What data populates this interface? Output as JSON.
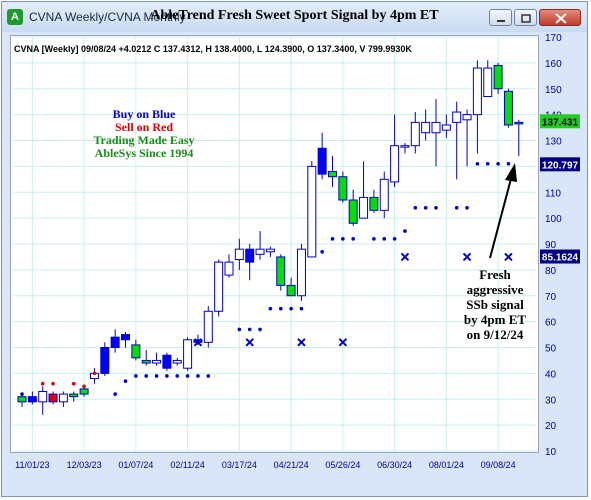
{
  "window": {
    "title": "CVNA Weekly/CVNA Monthly",
    "app_icon": "able-trend-icon",
    "chart_title": "AbleTrend Fresh Sweet Sport Signal by 4pm ET",
    "buttons": [
      "minimize",
      "restore",
      "close"
    ]
  },
  "quote_line": "CVNA [Weekly] 09/08/24 +4.0212 C 137.4312, H 138.4000, L 124.3900, O 137.3400, V 799.9930K",
  "legend": {
    "buy": "Buy on Blue",
    "sell": "Sell on Red",
    "tagline": "Trading Made Easy",
    "since": "AbleSys Since 1994",
    "colors": {
      "buy": "#0000e0",
      "sell": "#e00000",
      "tagline": "#1a8a1a",
      "since": "#1a8a1a"
    }
  },
  "annotation": {
    "lines": [
      "Fresh",
      "aggressive",
      "SSb signal",
      "by 4pm ET",
      "on 9/12/24"
    ]
  },
  "price_labels": [
    {
      "value": "137.431",
      "bg": "#22cc22",
      "fg": "#000000"
    },
    {
      "value": "120.797",
      "bg": "#000080",
      "fg": "#ffffff"
    },
    {
      "value": "85.1624",
      "bg": "#000080",
      "fg": "#ffffff"
    }
  ],
  "chart_data": {
    "type": "candlestick",
    "ylim": [
      10,
      170
    ],
    "yticks": [
      10,
      20,
      30,
      40,
      50,
      60,
      70,
      80,
      90,
      100,
      110,
      120,
      130,
      140,
      150,
      160,
      170
    ],
    "xticks": [
      "11/01/23",
      "12/03/23",
      "01/07/24",
      "02/11/24",
      "03/17/24",
      "04/21/24",
      "05/26/24",
      "06/30/24",
      "08/01/24",
      "09/08/24"
    ],
    "xtick_bars": [
      1,
      6,
      11,
      16,
      21,
      26,
      31,
      36,
      41,
      46
    ],
    "grid": true,
    "colors": {
      "up": "#00e000",
      "down": "#0000ff",
      "neutral": "#ffffff",
      "red": "#e00000",
      "wick": "#0000cc"
    },
    "bars": [
      {
        "o": 29,
        "h": 32,
        "l": 27,
        "c": 31,
        "color": "green"
      },
      {
        "o": 31,
        "h": 33,
        "l": 28,
        "c": 29,
        "color": "blue"
      },
      {
        "o": 29,
        "h": 35,
        "l": 24,
        "c": 33,
        "color": "white"
      },
      {
        "o": 32,
        "h": 33,
        "l": 28,
        "c": 29,
        "color": "red"
      },
      {
        "o": 29,
        "h": 33,
        "l": 27,
        "c": 32,
        "color": "white"
      },
      {
        "o": 31,
        "h": 33,
        "l": 29,
        "c": 32,
        "color": "green"
      },
      {
        "o": 32,
        "h": 35,
        "l": 31,
        "c": 34,
        "color": "green"
      },
      {
        "o": 38,
        "h": 42,
        "l": 36,
        "c": 40,
        "color": "white"
      },
      {
        "o": 40,
        "h": 52,
        "l": 39,
        "c": 50,
        "color": "blue"
      },
      {
        "o": 50,
        "h": 57,
        "l": 48,
        "c": 54,
        "color": "blue"
      },
      {
        "o": 53,
        "h": 56,
        "l": 50,
        "c": 55,
        "color": "blue"
      },
      {
        "o": 51,
        "h": 53,
        "l": 45,
        "c": 46,
        "color": "green"
      },
      {
        "o": 45,
        "h": 49,
        "l": 43,
        "c": 44,
        "color": "green"
      },
      {
        "o": 44,
        "h": 48,
        "l": 43,
        "c": 45,
        "color": "white"
      },
      {
        "o": 47,
        "h": 48,
        "l": 41,
        "c": 42,
        "color": "blue"
      },
      {
        "o": 45,
        "h": 46,
        "l": 43,
        "c": 44,
        "color": "white"
      },
      {
        "o": 42,
        "h": 54,
        "l": 41,
        "c": 53,
        "color": "white"
      },
      {
        "o": 53,
        "h": 55,
        "l": 51,
        "c": 52,
        "color": "blue"
      },
      {
        "o": 52,
        "h": 66,
        "l": 50,
        "c": 64,
        "color": "white"
      },
      {
        "o": 64,
        "h": 84,
        "l": 62,
        "c": 83,
        "color": "white"
      },
      {
        "o": 83,
        "h": 86,
        "l": 77,
        "c": 78,
        "color": "white"
      },
      {
        "o": 84,
        "h": 92,
        "l": 80,
        "c": 88,
        "color": "white"
      },
      {
        "o": 88,
        "h": 90,
        "l": 76,
        "c": 83,
        "color": "blue"
      },
      {
        "o": 86,
        "h": 95,
        "l": 84,
        "c": 88,
        "color": "white"
      },
      {
        "o": 88,
        "h": 89,
        "l": 85,
        "c": 87,
        "color": "white"
      },
      {
        "o": 85,
        "h": 86,
        "l": 72,
        "c": 74,
        "color": "green"
      },
      {
        "o": 74,
        "h": 77,
        "l": 70,
        "c": 70,
        "color": "green"
      },
      {
        "o": 70,
        "h": 90,
        "l": 68,
        "c": 88,
        "color": "white"
      },
      {
        "o": 85,
        "h": 122,
        "l": 85,
        "c": 120,
        "color": "white"
      },
      {
        "o": 127,
        "h": 133,
        "l": 115,
        "c": 117,
        "color": "blue"
      },
      {
        "o": 118,
        "h": 124,
        "l": 112,
        "c": 116,
        "color": "green"
      },
      {
        "o": 116,
        "h": 118,
        "l": 106,
        "c": 107,
        "color": "green"
      },
      {
        "o": 107,
        "h": 111,
        "l": 97,
        "c": 98,
        "color": "green"
      },
      {
        "o": 100,
        "h": 122,
        "l": 100,
        "c": 108,
        "color": "white"
      },
      {
        "o": 108,
        "h": 111,
        "l": 102,
        "c": 103,
        "color": "green"
      },
      {
        "o": 103,
        "h": 118,
        "l": 100,
        "c": 115,
        "color": "white"
      },
      {
        "o": 114,
        "h": 140,
        "l": 112,
        "c": 128,
        "color": "white"
      },
      {
        "o": 128,
        "h": 129,
        "l": 125,
        "c": 128,
        "color": "white"
      },
      {
        "o": 128,
        "h": 141,
        "l": 125,
        "c": 137,
        "color": "white"
      },
      {
        "o": 137,
        "h": 142,
        "l": 130,
        "c": 133,
        "color": "white"
      },
      {
        "o": 133,
        "h": 146,
        "l": 120,
        "c": 137,
        "color": "white"
      },
      {
        "o": 134,
        "h": 140,
        "l": 131,
        "c": 136,
        "color": "white"
      },
      {
        "o": 137,
        "h": 145,
        "l": 115,
        "c": 141,
        "color": "white"
      },
      {
        "o": 138,
        "h": 142,
        "l": 120,
        "c": 140,
        "color": "white"
      },
      {
        "o": 140,
        "h": 161,
        "l": 125,
        "c": 158,
        "color": "white"
      },
      {
        "o": 158,
        "h": 161,
        "l": 148,
        "c": 147,
        "color": "white"
      },
      {
        "o": 159,
        "h": 160,
        "l": 148,
        "c": 150,
        "color": "green"
      },
      {
        "o": 149,
        "h": 150,
        "l": 135,
        "c": 136,
        "color": "green"
      },
      {
        "o": 137,
        "h": 138,
        "l": 124,
        "c": 137,
        "color": "green"
      }
    ],
    "stop_dots": [
      {
        "x": 0,
        "y": 32,
        "color": "blue",
        "count": 1
      },
      {
        "x": 2,
        "y": 36,
        "color": "red",
        "count": 1
      },
      {
        "x": 3,
        "y": 36,
        "color": "red",
        "count": 1
      },
      {
        "x": 5,
        "y": 36,
        "color": "red",
        "count": 1
      },
      {
        "x": 6,
        "y": 35,
        "color": "red",
        "count": 1
      },
      {
        "x": 7,
        "y": 40,
        "color": "red",
        "count": 1
      },
      {
        "x": 9,
        "y": 32,
        "color": "blue",
        "count": 1
      },
      {
        "x": 10,
        "y": 37,
        "color": "blue",
        "count": 1
      },
      {
        "x": 11,
        "y": 39,
        "color": "blue",
        "count": 1
      },
      {
        "x": 12,
        "y": 39,
        "color": "blue",
        "count": 1
      },
      {
        "x": 13,
        "y": 39,
        "color": "blue",
        "count": 1
      },
      {
        "x": 14,
        "y": 39,
        "color": "blue",
        "count": 1
      },
      {
        "x": 15,
        "y": 39,
        "color": "blue",
        "count": 1
      },
      {
        "x": 16,
        "y": 39,
        "color": "blue",
        "count": 1
      },
      {
        "x": 17,
        "y": 39,
        "color": "blue",
        "count": 1
      },
      {
        "x": 18,
        "y": 39,
        "color": "blue",
        "count": 1
      },
      {
        "x": 21,
        "y": 57,
        "color": "blue",
        "count": 1
      },
      {
        "x": 22,
        "y": 57,
        "color": "blue",
        "count": 1
      },
      {
        "x": 23,
        "y": 57,
        "color": "blue",
        "count": 1
      },
      {
        "x": 24,
        "y": 65,
        "color": "blue",
        "count": 1
      },
      {
        "x": 25,
        "y": 65,
        "color": "blue",
        "count": 1
      },
      {
        "x": 26,
        "y": 65,
        "color": "blue",
        "count": 1
      },
      {
        "x": 27,
        "y": 65,
        "color": "blue",
        "count": 1
      },
      {
        "x": 29,
        "y": 87,
        "color": "blue",
        "count": 1
      },
      {
        "x": 30,
        "y": 92,
        "color": "blue",
        "count": 1
      },
      {
        "x": 31,
        "y": 92,
        "color": "blue",
        "count": 1
      },
      {
        "x": 32,
        "y": 92,
        "color": "blue",
        "count": 1
      },
      {
        "x": 34,
        "y": 92,
        "color": "blue",
        "count": 1
      },
      {
        "x": 35,
        "y": 92,
        "color": "blue",
        "count": 1
      },
      {
        "x": 36,
        "y": 92,
        "color": "blue",
        "count": 1
      },
      {
        "x": 37,
        "y": 95,
        "color": "blue",
        "count": 1
      },
      {
        "x": 38,
        "y": 104,
        "color": "blue",
        "count": 1
      },
      {
        "x": 39,
        "y": 104,
        "color": "blue",
        "count": 1
      },
      {
        "x": 40,
        "y": 104,
        "color": "blue",
        "count": 1
      },
      {
        "x": 42,
        "y": 104,
        "color": "blue",
        "count": 1
      },
      {
        "x": 43,
        "y": 104,
        "color": "blue",
        "count": 1
      },
      {
        "x": 44,
        "y": 121,
        "color": "blue",
        "count": 1
      },
      {
        "x": 45,
        "y": 121,
        "color": "blue",
        "count": 1
      },
      {
        "x": 46,
        "y": 121,
        "color": "blue",
        "count": 1
      },
      {
        "x": 47,
        "y": 121,
        "color": "blue",
        "count": 1
      }
    ],
    "x_markers": [
      {
        "x": 17,
        "y": 52
      },
      {
        "x": 22,
        "y": 52
      },
      {
        "x": 27,
        "y": 52
      },
      {
        "x": 31,
        "y": 52
      },
      {
        "x": 37,
        "y": 85
      },
      {
        "x": 43,
        "y": 85
      },
      {
        "x": 47,
        "y": 85
      }
    ]
  }
}
